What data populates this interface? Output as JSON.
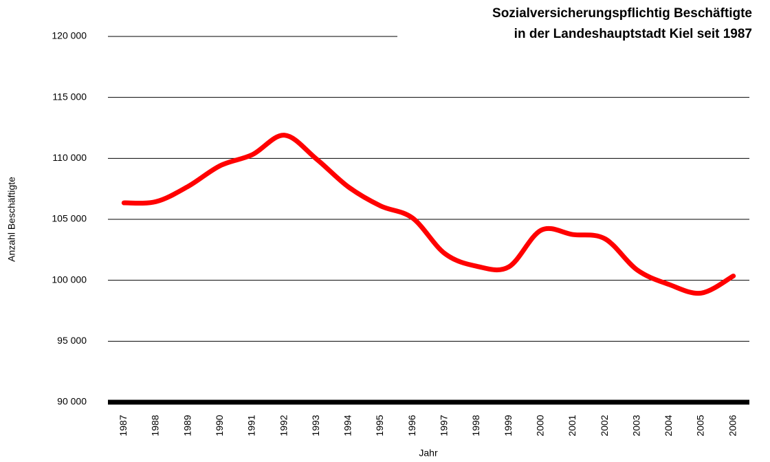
{
  "chart_data": {
    "type": "line",
    "title": [
      "Sozialversicherungspflichtig Beschäftigte",
      "in der Landeshauptstadt Kiel seit 1987"
    ],
    "x_label": "Jahr",
    "y_label": "Anzahl Beschäftigte",
    "categories": [
      "1987",
      "1988",
      "1989",
      "1990",
      "1991",
      "1992",
      "1993",
      "1994",
      "1995",
      "1996",
      "1997",
      "1998",
      "1999",
      "2000",
      "2001",
      "2002",
      "2003",
      "2004",
      "2005",
      "2006"
    ],
    "series": [
      {
        "name": "Beschäftigte",
        "color": "#ff0000",
        "values": [
          106350,
          106450,
          107700,
          109400,
          110300,
          111900,
          109950,
          107650,
          106100,
          105100,
          102200,
          101150,
          101100,
          104100,
          103750,
          103400,
          100850,
          99650,
          98950,
          100350
        ]
      }
    ],
    "ylim": [
      90000,
      120000
    ],
    "yticks": [
      {
        "value": 90000,
        "label": "90 000"
      },
      {
        "value": 95000,
        "label": "95 000"
      },
      {
        "value": 100000,
        "label": "100 000"
      },
      {
        "value": 105000,
        "label": "105 000"
      },
      {
        "value": 110000,
        "label": "110 000"
      },
      {
        "value": 115000,
        "label": "115 000"
      },
      {
        "value": 120000,
        "label": "120 000"
      }
    ],
    "grid": true
  }
}
